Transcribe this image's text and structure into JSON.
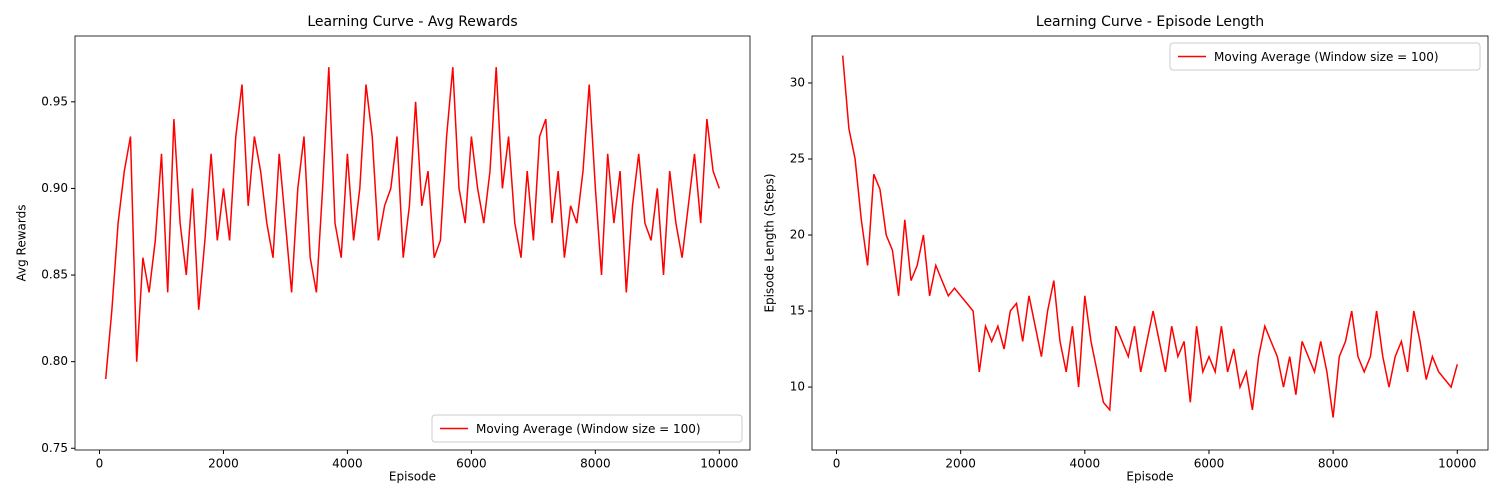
{
  "chart_data": [
    {
      "type": "line",
      "title": "Learning Curve - Avg Rewards",
      "xlabel": "Episode",
      "ylabel": "Avg Rewards",
      "x": [
        100,
        200,
        300,
        400,
        500,
        600,
        700,
        800,
        900,
        1000,
        1100,
        1200,
        1300,
        1400,
        1500,
        1600,
        1700,
        1800,
        1900,
        2000,
        2100,
        2200,
        2300,
        2400,
        2500,
        2600,
        2700,
        2800,
        2900,
        3000,
        3100,
        3200,
        3300,
        3400,
        3500,
        3600,
        3700,
        3800,
        3900,
        4000,
        4100,
        4200,
        4300,
        4400,
        4500,
        4600,
        4700,
        4800,
        4900,
        5000,
        5100,
        5200,
        5300,
        5400,
        5500,
        5600,
        5700,
        5800,
        5900,
        6000,
        6100,
        6200,
        6300,
        6400,
        6500,
        6600,
        6700,
        6800,
        6900,
        7000,
        7100,
        7200,
        7300,
        7400,
        7500,
        7600,
        7700,
        7800,
        7900,
        8000,
        8100,
        8200,
        8300,
        8400,
        8500,
        8600,
        8700,
        8800,
        8900,
        9000,
        9100,
        9200,
        9300,
        9400,
        9500,
        9600,
        9700,
        9800,
        9900,
        10000
      ],
      "series": [
        {
          "name": "Moving Average (Window size = 100)",
          "color": "#ff0000",
          "values": [
            0.79,
            0.83,
            0.88,
            0.91,
            0.93,
            0.8,
            0.86,
            0.84,
            0.87,
            0.92,
            0.84,
            0.94,
            0.88,
            0.85,
            0.9,
            0.83,
            0.87,
            0.92,
            0.87,
            0.9,
            0.87,
            0.93,
            0.96,
            0.89,
            0.93,
            0.91,
            0.88,
            0.86,
            0.92,
            0.88,
            0.84,
            0.9,
            0.93,
            0.86,
            0.84,
            0.9,
            0.97,
            0.88,
            0.86,
            0.92,
            0.87,
            0.9,
            0.96,
            0.93,
            0.87,
            0.89,
            0.9,
            0.93,
            0.86,
            0.89,
            0.95,
            0.89,
            0.91,
            0.86,
            0.87,
            0.93,
            0.97,
            0.9,
            0.88,
            0.93,
            0.9,
            0.88,
            0.91,
            0.97,
            0.9,
            0.93,
            0.88,
            0.86,
            0.91,
            0.87,
            0.93,
            0.94,
            0.88,
            0.91,
            0.86,
            0.89,
            0.88,
            0.91,
            0.96,
            0.9,
            0.85,
            0.92,
            0.88,
            0.91,
            0.84,
            0.89,
            0.92,
            0.88,
            0.87,
            0.9,
            0.85,
            0.91,
            0.88,
            0.86,
            0.89,
            0.92,
            0.88,
            0.94,
            0.91,
            0.9
          ]
        }
      ],
      "xlim": [
        -395,
        10495
      ],
      "xticks": [
        0,
        2000,
        4000,
        6000,
        8000,
        10000
      ],
      "ylim": [
        0.749,
        0.988
      ],
      "yticks": [
        {
          "value": 0.75,
          "label": "0.75"
        },
        {
          "value": 0.8,
          "label": "0.80"
        },
        {
          "value": 0.85,
          "label": "0.85"
        },
        {
          "value": 0.9,
          "label": "0.90"
        },
        {
          "value": 0.95,
          "label": "0.95"
        }
      ],
      "legend": "lower right"
    },
    {
      "type": "line",
      "title": "Learning Curve - Episode Length",
      "xlabel": "Episode",
      "ylabel": "Episode Length (Steps)",
      "x": [
        100,
        200,
        300,
        400,
        500,
        600,
        700,
        800,
        900,
        1000,
        1100,
        1200,
        1300,
        1400,
        1500,
        1600,
        1700,
        1800,
        1900,
        2000,
        2100,
        2200,
        2300,
        2400,
        2500,
        2600,
        2700,
        2800,
        2900,
        3000,
        3100,
        3200,
        3300,
        3400,
        3500,
        3600,
        3700,
        3800,
        3900,
        4000,
        4100,
        4200,
        4300,
        4400,
        4500,
        4600,
        4700,
        4800,
        4900,
        5000,
        5100,
        5200,
        5300,
        5400,
        5500,
        5600,
        5700,
        5800,
        5900,
        6000,
        6100,
        6200,
        6300,
        6400,
        6500,
        6600,
        6700,
        6800,
        6900,
        7000,
        7100,
        7200,
        7300,
        7400,
        7500,
        7600,
        7700,
        7800,
        7900,
        8000,
        8100,
        8200,
        8300,
        8400,
        8500,
        8600,
        8700,
        8800,
        8900,
        9000,
        9100,
        9200,
        9300,
        9400,
        9500,
        9600,
        9700,
        9800,
        9900,
        10000
      ],
      "series": [
        {
          "name": "Moving Average (Window size = 100)",
          "color": "#ff0000",
          "values": [
            31.8,
            27,
            25,
            21,
            18,
            24,
            23,
            20,
            19,
            16,
            21,
            17,
            18,
            20,
            16,
            18,
            17,
            16,
            16.5,
            16,
            15.5,
            15,
            11,
            14,
            13,
            14,
            12.5,
            15,
            15.5,
            13,
            16,
            14,
            12,
            15,
            17,
            13,
            11,
            14,
            10,
            16,
            13,
            11,
            9,
            8.5,
            14,
            13,
            12,
            14,
            11,
            13,
            15,
            13,
            11,
            14,
            12,
            13,
            9,
            14,
            11,
            12,
            11,
            14,
            11,
            12.5,
            10,
            11,
            8.5,
            12,
            14,
            13,
            12,
            10,
            12,
            9.5,
            13,
            12,
            11,
            13,
            11,
            8,
            12,
            13,
            15,
            12,
            11,
            12,
            15,
            12,
            10,
            12,
            13,
            11,
            15,
            13,
            10.5,
            12,
            11,
            10.5,
            10,
            11.5
          ]
        }
      ],
      "xlim": [
        -395,
        10495
      ],
      "xticks": [
        0,
        2000,
        4000,
        6000,
        8000,
        10000
      ],
      "ylim": [
        5.86,
        33.09
      ],
      "yticks": [
        10,
        15,
        20,
        25,
        30
      ],
      "legend": "upper right"
    }
  ]
}
